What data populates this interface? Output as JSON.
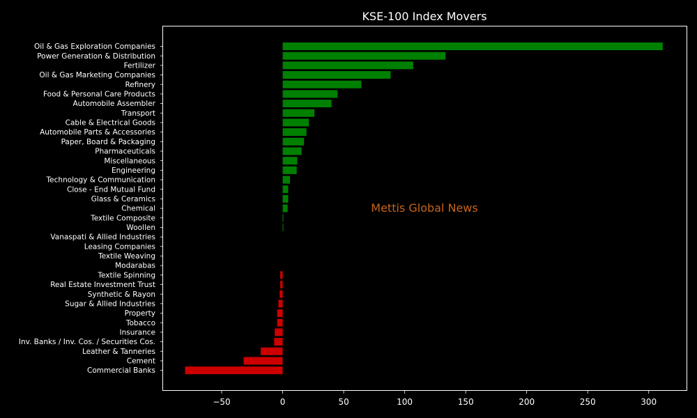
{
  "chart_data": {
    "type": "bar",
    "orientation": "horizontal",
    "title": "KSE-100 Index Movers",
    "xlabel": "",
    "ylabel": "",
    "watermark": "Mettis Global News",
    "xlim": [
      -98,
      331
    ],
    "xticks": [
      -50,
      0,
      50,
      100,
      150,
      200,
      250,
      300
    ],
    "xtick_labels": [
      "−50",
      "0",
      "50",
      "100",
      "150",
      "200",
      "250",
      "300"
    ],
    "grid": false,
    "colors": {
      "background": "#000000",
      "text": "#ffffff",
      "positive": "#008000",
      "negative": "#cc0000",
      "watermark": "#c8651b"
    },
    "categories": [
      "Oil & Gas Exploration Companies",
      "Power Generation & Distribution",
      "Fertilizer",
      "Oil & Gas Marketing Companies",
      "Refinery",
      "Food & Personal Care Products",
      "Automobile Assembler",
      "Transport",
      "Cable & Electrical Goods",
      "Automobile Parts & Accessories",
      "Paper, Board & Packaging",
      "Pharmaceuticals",
      "Miscellaneous",
      "Engineering",
      "Technology & Communication",
      "Close - End Mutual Fund",
      "Glass & Ceramics",
      "Chemical",
      "Textile Composite",
      "Woollen",
      "Vanaspati & Allied Industries",
      "Leasing Companies",
      "Textile Weaving",
      "Modarabas",
      "Textile Spinning",
      "Real Estate Investment Trust",
      "Synthetic & Rayon",
      "Sugar & Allied Industries",
      "Property",
      "Tobacco",
      "Insurance",
      "Inv. Banks / Inv. Cos. / Securities Cos.",
      "Leather & Tanneries",
      "Cement",
      "Commercial Banks"
    ],
    "values": [
      311.5,
      133.5,
      107,
      88.5,
      64.5,
      45,
      40,
      26,
      21.5,
      19.5,
      17.5,
      15.5,
      12,
      11.5,
      6,
      4.5,
      4.5,
      4,
      0.6,
      0.6,
      0,
      0,
      0,
      0,
      -2,
      -2,
      -2.5,
      -3.5,
      -4.5,
      -4.5,
      -6.5,
      -7,
      -18,
      -32,
      -80
    ]
  }
}
